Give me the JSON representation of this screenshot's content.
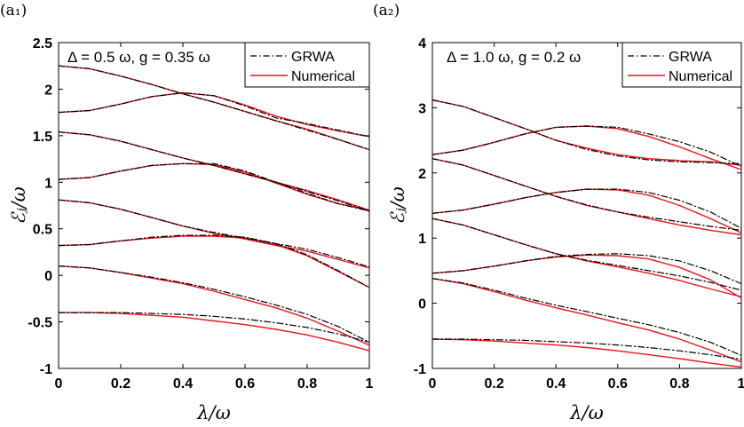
{
  "colors": {
    "grwa": "#000000",
    "numerical": "#e8141c",
    "axes": "#000000"
  },
  "chart_data": [
    {
      "type": "line",
      "panel_label": "(a₁)",
      "annotation": "Δ = 0.5 ω, g = 0.35 ω",
      "xlabel": "λ/ω",
      "ylabel": "ℰⱼ/ω",
      "xlim": [
        0,
        1
      ],
      "ylim": [
        -1,
        2.5
      ],
      "xticks": [
        "0",
        "0.2",
        "0.4",
        "0.6",
        "0.8",
        "1"
      ],
      "yticks": [
        "-1",
        "-0.5",
        "0",
        "0.5",
        "1",
        "1.5",
        "2",
        "2.5"
      ],
      "legend": {
        "placement": "top-right",
        "entries": [
          "GRWA",
          "Numerical"
        ]
      },
      "x": [
        0,
        0.1,
        0.2,
        0.3,
        0.4,
        0.5,
        0.6,
        0.7,
        0.8,
        0.9,
        1.0
      ],
      "series": [
        {
          "name": "Numerical",
          "values": [
            2.25,
            2.22,
            2.14,
            2.05,
            1.95,
            1.86,
            1.76,
            1.66,
            1.57,
            1.46,
            1.35
          ]
        },
        {
          "name": "Numerical",
          "values": [
            1.75,
            1.77,
            1.84,
            1.92,
            1.96,
            1.93,
            1.83,
            1.71,
            1.62,
            1.55,
            1.49
          ]
        },
        {
          "name": "Numerical",
          "values": [
            1.54,
            1.51,
            1.44,
            1.35,
            1.26,
            1.18,
            1.09,
            1.0,
            0.91,
            0.81,
            0.7
          ]
        },
        {
          "name": "Numerical",
          "values": [
            1.03,
            1.05,
            1.12,
            1.18,
            1.2,
            1.19,
            1.11,
            0.99,
            0.87,
            0.77,
            0.7
          ]
        },
        {
          "name": "Numerical",
          "values": [
            0.81,
            0.78,
            0.71,
            0.62,
            0.53,
            0.45,
            0.39,
            0.32,
            0.26,
            0.17,
            0.08
          ]
        },
        {
          "name": "Numerical",
          "values": [
            0.32,
            0.33,
            0.37,
            0.4,
            0.42,
            0.42,
            0.4,
            0.33,
            0.21,
            0.04,
            -0.13
          ]
        },
        {
          "name": "Numerical",
          "values": [
            0.1,
            0.08,
            0.03,
            -0.03,
            -0.09,
            -0.17,
            -0.26,
            -0.35,
            -0.46,
            -0.6,
            -0.75
          ]
        },
        {
          "name": "Numerical",
          "values": [
            -0.4,
            -0.4,
            -0.41,
            -0.43,
            -0.45,
            -0.49,
            -0.53,
            -0.58,
            -0.64,
            -0.72,
            -0.81
          ]
        },
        {
          "name": "GRWA",
          "values": [
            2.25,
            2.22,
            2.14,
            2.05,
            1.95,
            1.86,
            1.76,
            1.66,
            1.56,
            1.46,
            1.35
          ]
        },
        {
          "name": "GRWA",
          "values": [
            1.75,
            1.77,
            1.84,
            1.92,
            1.96,
            1.93,
            1.82,
            1.69,
            1.63,
            1.56,
            1.49
          ]
        },
        {
          "name": "GRWA",
          "values": [
            1.54,
            1.51,
            1.44,
            1.35,
            1.26,
            1.18,
            1.09,
            1.0,
            0.9,
            0.8,
            0.69
          ]
        },
        {
          "name": "GRWA",
          "values": [
            1.03,
            1.05,
            1.12,
            1.18,
            1.2,
            1.2,
            1.12,
            1.0,
            0.88,
            0.77,
            0.69
          ]
        },
        {
          "name": "GRWA",
          "values": [
            0.81,
            0.78,
            0.71,
            0.62,
            0.53,
            0.46,
            0.4,
            0.34,
            0.28,
            0.19,
            0.09
          ]
        },
        {
          "name": "GRWA",
          "values": [
            0.32,
            0.33,
            0.37,
            0.41,
            0.43,
            0.43,
            0.41,
            0.34,
            0.22,
            0.05,
            -0.13
          ]
        },
        {
          "name": "GRWA",
          "values": [
            0.1,
            0.08,
            0.03,
            -0.02,
            -0.08,
            -0.15,
            -0.23,
            -0.32,
            -0.42,
            -0.55,
            -0.72
          ]
        },
        {
          "name": "GRWA",
          "values": [
            -0.4,
            -0.4,
            -0.4,
            -0.41,
            -0.42,
            -0.44,
            -0.47,
            -0.51,
            -0.56,
            -0.63,
            -0.72
          ]
        }
      ]
    },
    {
      "type": "line",
      "panel_label": "(a₂)",
      "annotation": "Δ = 1.0 ω, g = 0.2 ω",
      "xlabel": "λ/ω",
      "ylabel": "ℰⱼ/ω",
      "xlim": [
        0,
        1
      ],
      "ylim": [
        -1,
        4
      ],
      "xticks": [
        "0",
        "0.2",
        "0.4",
        "0.6",
        "0.8",
        "1"
      ],
      "yticks": [
        "-1",
        "0",
        "1",
        "2",
        "3",
        "4"
      ],
      "legend": {
        "placement": "top-right",
        "entries": [
          "GRWA",
          "Numerical"
        ]
      },
      "x": [
        0,
        0.1,
        0.2,
        0.3,
        0.4,
        0.5,
        0.6,
        0.7,
        0.8,
        0.9,
        1.0
      ],
      "series": [
        {
          "name": "Numerical",
          "values": [
            3.12,
            3.02,
            2.85,
            2.68,
            2.5,
            2.38,
            2.28,
            2.22,
            2.19,
            2.17,
            2.12
          ]
        },
        {
          "name": "Numerical",
          "values": [
            2.28,
            2.35,
            2.47,
            2.6,
            2.7,
            2.72,
            2.68,
            2.56,
            2.4,
            2.22,
            2.05
          ]
        },
        {
          "name": "Numerical",
          "values": [
            2.22,
            2.12,
            1.96,
            1.8,
            1.64,
            1.5,
            1.4,
            1.3,
            1.2,
            1.12,
            1.05
          ]
        },
        {
          "name": "Numerical",
          "values": [
            1.38,
            1.43,
            1.52,
            1.62,
            1.7,
            1.75,
            1.74,
            1.66,
            1.5,
            1.3,
            1.08
          ]
        },
        {
          "name": "Numerical",
          "values": [
            1.3,
            1.2,
            1.05,
            0.9,
            0.76,
            0.65,
            0.56,
            0.46,
            0.35,
            0.22,
            0.1
          ]
        },
        {
          "name": "Numerical",
          "values": [
            0.46,
            0.5,
            0.57,
            0.65,
            0.71,
            0.74,
            0.73,
            0.68,
            0.55,
            0.36,
            0.08
          ]
        },
        {
          "name": "Numerical",
          "values": [
            0.38,
            0.3,
            0.18,
            0.05,
            -0.07,
            -0.18,
            -0.3,
            -0.41,
            -0.55,
            -0.72,
            -0.9
          ]
        },
        {
          "name": "Numerical",
          "values": [
            -0.55,
            -0.56,
            -0.58,
            -0.61,
            -0.64,
            -0.68,
            -0.73,
            -0.79,
            -0.85,
            -0.92,
            -0.98
          ]
        },
        {
          "name": "GRWA",
          "values": [
            3.12,
            3.02,
            2.85,
            2.68,
            2.5,
            2.36,
            2.26,
            2.2,
            2.17,
            2.16,
            2.14
          ]
        },
        {
          "name": "GRWA",
          "values": [
            2.28,
            2.35,
            2.47,
            2.6,
            2.7,
            2.72,
            2.7,
            2.6,
            2.48,
            2.32,
            2.1
          ]
        },
        {
          "name": "GRWA",
          "values": [
            2.22,
            2.12,
            1.96,
            1.8,
            1.64,
            1.51,
            1.4,
            1.32,
            1.25,
            1.18,
            1.12
          ]
        },
        {
          "name": "GRWA",
          "values": [
            1.38,
            1.43,
            1.52,
            1.62,
            1.7,
            1.75,
            1.75,
            1.7,
            1.58,
            1.4,
            1.15
          ]
        },
        {
          "name": "GRWA",
          "values": [
            1.3,
            1.2,
            1.05,
            0.9,
            0.76,
            0.66,
            0.58,
            0.5,
            0.42,
            0.32,
            0.2
          ]
        },
        {
          "name": "GRWA",
          "values": [
            0.46,
            0.5,
            0.57,
            0.65,
            0.72,
            0.75,
            0.76,
            0.73,
            0.65,
            0.5,
            0.3
          ]
        },
        {
          "name": "GRWA",
          "values": [
            0.38,
            0.31,
            0.2,
            0.08,
            -0.03,
            -0.13,
            -0.23,
            -0.33,
            -0.45,
            -0.6,
            -0.8
          ]
        },
        {
          "name": "GRWA",
          "values": [
            -0.55,
            -0.55,
            -0.56,
            -0.57,
            -0.59,
            -0.61,
            -0.64,
            -0.68,
            -0.73,
            -0.79,
            -0.86
          ]
        }
      ]
    }
  ]
}
